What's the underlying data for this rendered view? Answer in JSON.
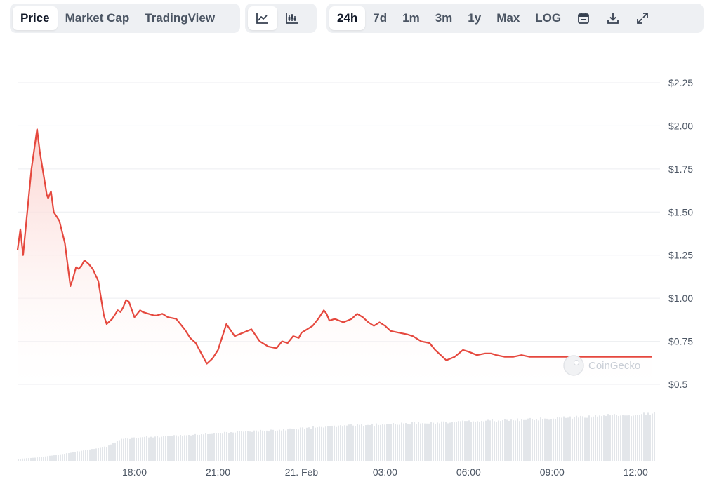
{
  "toolbar": {
    "metric_tabs": [
      {
        "label": "Price",
        "active": true
      },
      {
        "label": "Market Cap",
        "active": false
      },
      {
        "label": "TradingView",
        "active": false
      }
    ],
    "chart_type_icons": [
      {
        "icon": "line-chart-icon",
        "active": true
      },
      {
        "icon": "candlestick-chart-icon",
        "active": false
      }
    ],
    "range_tabs": [
      {
        "label": "24h",
        "active": true
      },
      {
        "label": "7d",
        "active": false
      },
      {
        "label": "1m",
        "active": false
      },
      {
        "label": "3m",
        "active": false
      },
      {
        "label": "1y",
        "active": false
      },
      {
        "label": "Max",
        "active": false
      },
      {
        "label": "LOG",
        "active": false
      }
    ],
    "action_icons": [
      "calendar-icon",
      "download-icon",
      "expand-icon"
    ]
  },
  "watermark": "CoinGecko",
  "colors": {
    "line": "#e5483e",
    "fill_top": "#fbd0cc",
    "grid": "#eceef1",
    "volume": "#e3e6ea",
    "toolbar_bg": "#eef0f3"
  },
  "chart_data": {
    "type": "area",
    "title": "",
    "xlabel": "",
    "ylabel": "",
    "y_tick_labels": [
      "$2.25",
      "$2.00",
      "$1.75",
      "$1.50",
      "$1.25",
      "$1.00",
      "$0.75",
      "$0.5"
    ],
    "y_ticks": [
      2.25,
      2.0,
      1.75,
      1.5,
      1.25,
      1.0,
      0.75,
      0.5
    ],
    "ylim": [
      0.5,
      2.25
    ],
    "x_tick_labels": [
      "18:00",
      "21:00",
      "21. Feb",
      "03:00",
      "06:00",
      "09:00",
      "12:00"
    ],
    "x_ticks_hours": [
      18,
      21,
      24,
      27,
      30,
      33,
      36
    ],
    "x_range_hours": [
      13.8,
      36.7
    ],
    "grid": true,
    "price_series": {
      "x_hours": [
        13.8,
        13.9,
        14.0,
        14.1,
        14.3,
        14.5,
        14.6,
        14.7,
        14.8,
        14.85,
        14.9,
        15.0,
        15.1,
        15.3,
        15.5,
        15.7,
        15.8,
        15.9,
        16.0,
        16.1,
        16.2,
        16.35,
        16.5,
        16.7,
        16.9,
        17.0,
        17.2,
        17.4,
        17.5,
        17.6,
        17.7,
        17.8,
        18.0,
        18.2,
        18.3,
        18.5,
        18.7,
        18.8,
        19.0,
        19.2,
        19.5,
        19.8,
        20.0,
        20.2,
        20.4,
        20.6,
        20.8,
        21.0,
        21.3,
        21.6,
        21.9,
        22.2,
        22.5,
        22.8,
        23.1,
        23.3,
        23.5,
        23.7,
        23.9,
        24.0,
        24.2,
        24.4,
        24.6,
        24.8,
        24.9,
        25.0,
        25.2,
        25.5,
        25.8,
        26.0,
        26.2,
        26.4,
        26.6,
        26.8,
        27.0,
        27.2,
        27.5,
        27.8,
        28.0,
        28.3,
        28.6,
        28.8,
        29.0,
        29.2,
        29.5,
        29.8,
        30.0,
        30.3,
        30.6,
        30.8,
        31.0,
        31.3,
        31.6,
        31.9,
        32.2,
        32.5,
        32.8,
        33.0,
        33.3,
        33.6,
        33.8,
        34.0,
        34.2,
        34.4,
        34.6,
        34.8,
        35.0,
        35.2,
        35.4,
        35.6,
        35.8,
        36.0,
        36.2,
        36.4,
        36.6
      ],
      "y_price": [
        1.28,
        1.4,
        1.25,
        1.42,
        1.75,
        1.98,
        1.85,
        1.75,
        1.65,
        1.6,
        1.58,
        1.62,
        1.5,
        1.45,
        1.32,
        1.07,
        1.12,
        1.18,
        1.17,
        1.19,
        1.22,
        1.2,
        1.17,
        1.1,
        0.9,
        0.85,
        0.88,
        0.93,
        0.92,
        0.95,
        0.99,
        0.98,
        0.89,
        0.93,
        0.92,
        0.91,
        0.9,
        0.9,
        0.91,
        0.89,
        0.88,
        0.82,
        0.77,
        0.74,
        0.68,
        0.62,
        0.65,
        0.7,
        0.85,
        0.78,
        0.8,
        0.82,
        0.75,
        0.72,
        0.71,
        0.75,
        0.74,
        0.78,
        0.77,
        0.8,
        0.82,
        0.84,
        0.88,
        0.93,
        0.91,
        0.87,
        0.88,
        0.86,
        0.88,
        0.91,
        0.89,
        0.86,
        0.84,
        0.86,
        0.84,
        0.81,
        0.8,
        0.79,
        0.78,
        0.75,
        0.74,
        0.7,
        0.67,
        0.64,
        0.66,
        0.7,
        0.69,
        0.67,
        0.68,
        0.68,
        0.67,
        0.66,
        0.66,
        0.67,
        0.66,
        0.66,
        0.66,
        0.66,
        0.66,
        0.66,
        0.66,
        0.66,
        0.66,
        0.66,
        0.66,
        0.66,
        0.66,
        0.66,
        0.66,
        0.66,
        0.66,
        0.66,
        0.66,
        0.66,
        0.66
      ]
    },
    "volume_series": {
      "x_hours": [
        13.8,
        14.5,
        15.5,
        16.5,
        17.0,
        17.3,
        17.5,
        18.0,
        19.0,
        20.0,
        21.0,
        22.0,
        23.0,
        24.0,
        25.0,
        26.0,
        27.0,
        28.0,
        29.0,
        30.0,
        31.0,
        32.0,
        33.0,
        34.0,
        35.0,
        36.0,
        36.6
      ],
      "relative_volume": [
        0.04,
        0.07,
        0.15,
        0.25,
        0.3,
        0.38,
        0.44,
        0.48,
        0.5,
        0.53,
        0.57,
        0.6,
        0.63,
        0.67,
        0.7,
        0.73,
        0.75,
        0.77,
        0.79,
        0.81,
        0.83,
        0.85,
        0.87,
        0.9,
        0.93,
        0.95,
        0.97
      ]
    }
  }
}
